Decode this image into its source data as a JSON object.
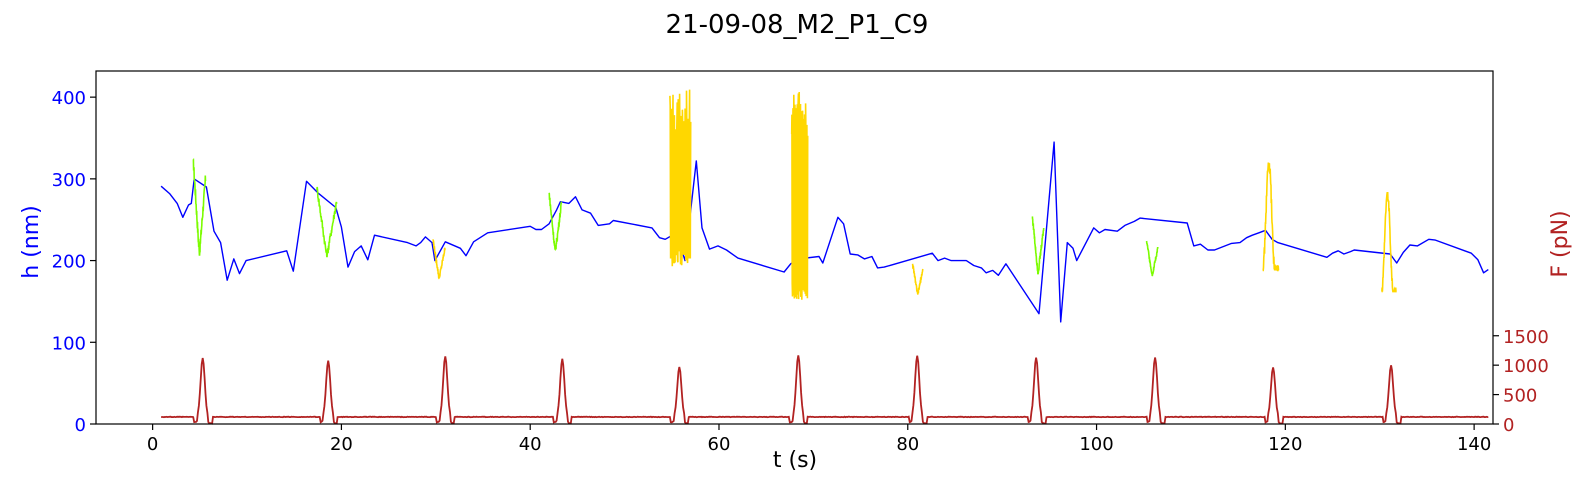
{
  "figure": {
    "title": "21-09-08_M2_P1_C9"
  },
  "chart_data": {
    "type": "line",
    "title": "21-09-08_M2_P1_C9",
    "xlabel": "t (s)",
    "ylabel_left": "h (nm)",
    "ylabel_right": "F (pN)",
    "xlim": [
      -6,
      142
    ],
    "ylim_left": [
      0,
      432
    ],
    "ylim_right": [
      0,
      6000
    ],
    "x_ticks": [
      0,
      20,
      40,
      60,
      80,
      100,
      120,
      140
    ],
    "y_ticks_left": [
      0,
      100,
      200,
      300,
      400
    ],
    "y_ticks_right": [
      0,
      500,
      1000,
      1500
    ],
    "grid": false,
    "colors": {
      "height": "#0000ff",
      "force": "#b22222",
      "green_segments": "#7cfc00",
      "yellow_segments": "#ffd700",
      "left_axis": "#0000ff",
      "right_axis": "#b22222"
    },
    "series": [
      {
        "axis": "left",
        "color": "#0000ff",
        "values": [
          [
            0.9,
            291
          ],
          [
            1.8,
            282
          ],
          [
            2.6,
            270
          ],
          [
            3.2,
            253
          ],
          [
            3.8,
            268
          ],
          [
            4.1,
            270
          ],
          [
            4.4,
            300
          ],
          [
            5.7,
            290
          ],
          [
            6.5,
            236
          ],
          [
            7.2,
            222
          ],
          [
            7.9,
            176
          ],
          [
            8.6,
            202
          ],
          [
            9.2,
            184
          ],
          [
            9.9,
            200
          ],
          [
            14.2,
            212
          ],
          [
            14.9,
            187
          ],
          [
            16.3,
            297
          ],
          [
            17.5,
            283
          ],
          [
            19.4,
            265
          ],
          [
            20.0,
            241
          ],
          [
            20.7,
            192
          ],
          [
            21.4,
            211
          ],
          [
            22.1,
            218
          ],
          [
            22.8,
            201
          ],
          [
            23.5,
            231
          ],
          [
            27.0,
            222
          ],
          [
            27.9,
            218
          ],
          [
            28.4,
            222
          ],
          [
            28.9,
            229
          ],
          [
            29.6,
            222
          ],
          [
            29.9,
            200
          ],
          [
            31.0,
            223
          ],
          [
            32.6,
            215
          ],
          [
            33.2,
            206
          ],
          [
            34.0,
            223
          ],
          [
            35.5,
            234
          ],
          [
            40.0,
            242
          ],
          [
            40.6,
            238
          ],
          [
            41.2,
            238
          ],
          [
            42.0,
            245
          ],
          [
            42.8,
            262
          ],
          [
            43.2,
            272
          ],
          [
            44.1,
            270
          ],
          [
            44.8,
            278
          ],
          [
            45.5,
            262
          ],
          [
            46.4,
            258
          ],
          [
            47.2,
            243
          ],
          [
            48.4,
            245
          ],
          [
            48.8,
            249
          ],
          [
            52.9,
            240
          ],
          [
            53.7,
            228
          ],
          [
            54.3,
            226
          ],
          [
            54.9,
            230
          ],
          [
            55.3,
            241
          ],
          [
            56.4,
            200
          ],
          [
            57.6,
            322
          ],
          [
            58.2,
            240
          ],
          [
            59.0,
            214
          ],
          [
            59.9,
            218
          ],
          [
            60.8,
            213
          ],
          [
            62.0,
            203
          ],
          [
            66.9,
            186
          ],
          [
            67.6,
            196
          ],
          [
            68.4,
            202
          ],
          [
            70.6,
            205
          ],
          [
            71.0,
            197
          ],
          [
            72.6,
            253
          ],
          [
            73.2,
            245
          ],
          [
            73.9,
            208
          ],
          [
            74.7,
            207
          ],
          [
            75.4,
            202
          ],
          [
            76.2,
            205
          ],
          [
            76.8,
            191
          ],
          [
            77.5,
            192
          ],
          [
            82.6,
            209
          ],
          [
            83.2,
            200
          ],
          [
            83.9,
            203
          ],
          [
            84.6,
            200
          ],
          [
            86.2,
            200
          ],
          [
            87.0,
            194
          ],
          [
            87.8,
            191
          ],
          [
            88.3,
            185
          ],
          [
            89.0,
            188
          ],
          [
            89.6,
            182
          ],
          [
            90.4,
            196
          ],
          [
            93.9,
            135
          ],
          [
            95.5,
            345
          ],
          [
            96.2,
            125
          ],
          [
            96.9,
            222
          ],
          [
            97.5,
            215
          ],
          [
            97.9,
            200
          ],
          [
            99.7,
            240
          ],
          [
            100.3,
            234
          ],
          [
            100.9,
            238
          ],
          [
            102.2,
            236
          ],
          [
            103.0,
            243
          ],
          [
            104.0,
            248
          ],
          [
            104.6,
            252
          ],
          [
            109.6,
            246
          ],
          [
            110.3,
            218
          ],
          [
            111.0,
            220
          ],
          [
            111.8,
            213
          ],
          [
            112.5,
            213
          ],
          [
            114.3,
            221
          ],
          [
            115.2,
            222
          ],
          [
            115.9,
            228
          ],
          [
            116.5,
            231
          ],
          [
            117.2,
            234
          ],
          [
            117.9,
            237
          ],
          [
            118.6,
            226
          ],
          [
            119.2,
            222
          ],
          [
            124.4,
            204
          ],
          [
            125.0,
            209
          ],
          [
            125.6,
            212
          ],
          [
            126.2,
            208
          ],
          [
            126.9,
            211
          ],
          [
            127.3,
            213
          ],
          [
            131.1,
            208
          ],
          [
            131.8,
            197
          ],
          [
            132.5,
            210
          ],
          [
            133.2,
            219
          ],
          [
            134.0,
            218
          ],
          [
            135.2,
            226
          ],
          [
            135.9,
            225
          ],
          [
            139.0,
            212
          ],
          [
            139.7,
            209
          ],
          [
            140.4,
            201
          ],
          [
            141.0,
            185
          ],
          [
            141.5,
            189
          ]
        ]
      }
    ]
  }
}
